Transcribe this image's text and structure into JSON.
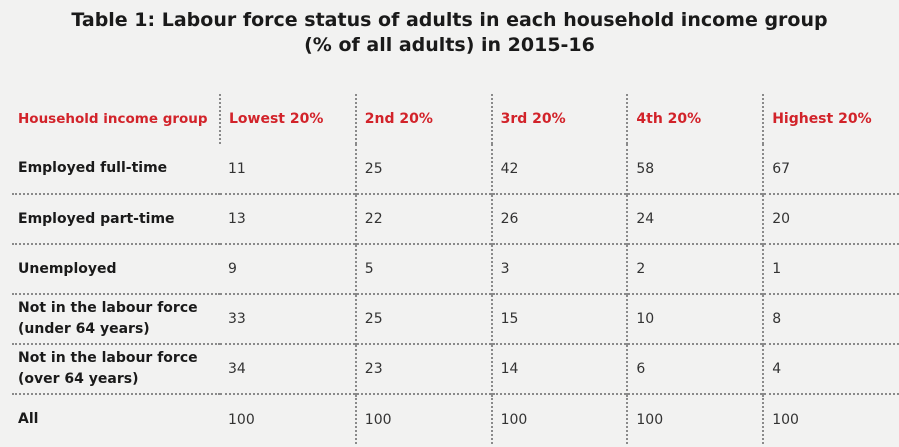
{
  "title": {
    "line1": "Table 1: Labour force status of adults in each household income group",
    "line2": "(% of all adults) in 2015-16"
  },
  "table": {
    "headers": [
      "Household income group",
      "Lowest 20%",
      "2nd 20%",
      "3rd 20%",
      "4th 20%",
      "Highest 20%"
    ],
    "rows": [
      {
        "label": [
          "Employed full-time"
        ],
        "values": [
          "11",
          "25",
          "42",
          "58",
          "67"
        ]
      },
      {
        "label": [
          "Employed part-time"
        ],
        "values": [
          "13",
          "22",
          "26",
          "24",
          "20"
        ]
      },
      {
        "label": [
          "Unemployed"
        ],
        "values": [
          "9",
          "5",
          "3",
          "2",
          "1"
        ]
      },
      {
        "label": [
          "Not in the labour force",
          "(under 64 years)"
        ],
        "values": [
          "33",
          "25",
          "15",
          "10",
          "8"
        ]
      },
      {
        "label": [
          "Not in the labour force",
          "(over 64 years)"
        ],
        "values": [
          "34",
          "23",
          "14",
          "6",
          "4"
        ]
      },
      {
        "label": [
          "All"
        ],
        "values": [
          "100",
          "100",
          "100",
          "100",
          "100"
        ]
      }
    ]
  },
  "colors": {
    "background": "#f2f2f1",
    "header_text": "#d2232a",
    "rule": "#8a8a8a"
  }
}
